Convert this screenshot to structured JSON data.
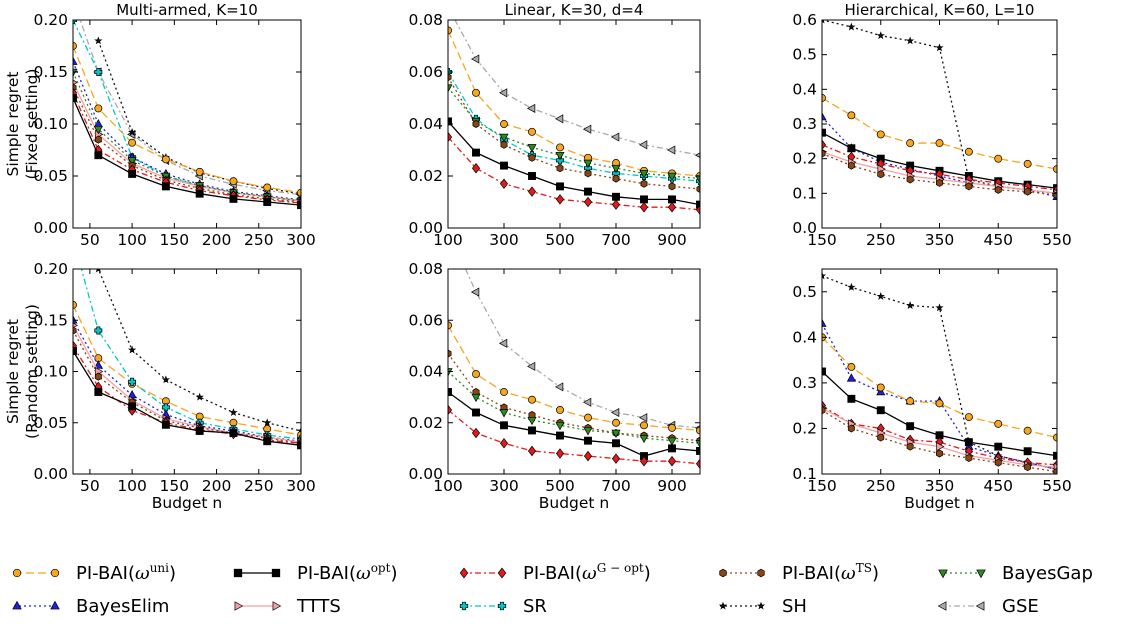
{
  "colors": {
    "PI-BAI(w_uni)": "#f5a623",
    "PI-BAI(w_opt)": "#000000",
    "PI-BAI(w_Gopt)": "#e31a1c",
    "PI-BAI(w_TS)": "#8b4513",
    "BayesGap": "#2e8b22",
    "BayesElim": "#1f1fe0",
    "TTTS": "#f4a0a8",
    "SR": "#00c8c8",
    "SH": "#111111",
    "GSE": "#aaaaaa"
  },
  "legend": [
    {
      "key": "PI-BAI(w_uni)",
      "base": "PI-BAI(",
      "math": "ω",
      "sup": "uni",
      "close": ")",
      "marker": "circle",
      "dash": "8,4"
    },
    {
      "key": "PI-BAI(w_opt)",
      "base": "PI-BAI(",
      "math": "ω",
      "sup": "opt",
      "close": ")",
      "marker": "square",
      "dash": ""
    },
    {
      "key": "PI-BAI(w_Gopt)",
      "base": "PI-BAI(",
      "math": "ω",
      "sup": "G − opt",
      "close": ")",
      "marker": "diamond",
      "dash": "6,3,2,3"
    },
    {
      "key": "PI-BAI(w_TS)",
      "base": "PI-BAI(",
      "math": "ω",
      "sup": "TS",
      "close": ")",
      "marker": "hexagon",
      "dash": "2,3"
    },
    {
      "key": "BayesGap",
      "base": "BayesGap",
      "marker": "tri_down",
      "dash": "2,3"
    },
    {
      "key": "BayesElim",
      "base": "BayesElim",
      "marker": "tri_up",
      "dash": "2,3"
    },
    {
      "key": "TTTS",
      "base": "TTTS",
      "marker": "tri_right",
      "dash": ""
    },
    {
      "key": "SR",
      "base": "SR",
      "marker": "plus",
      "dash": "6,3,2,3"
    },
    {
      "key": "SH",
      "base": "SH",
      "marker": "star",
      "dash": "2,3"
    },
    {
      "key": "GSE",
      "base": "GSE",
      "marker": "tri_left",
      "dash": "6,3,2,3"
    }
  ],
  "chart_data": [
    {
      "type": "line",
      "title": "Multi-armed, K=10",
      "ylabel": "Simple regret\n(Fixed setting)",
      "xlabel": "",
      "xlim": [
        30,
        300
      ],
      "ylim": [
        0,
        0.2
      ],
      "xticks": [
        50,
        100,
        150,
        200,
        250,
        300
      ],
      "yticks": [
        0,
        0.05,
        0.1,
        0.15,
        0.2
      ],
      "xtick_labels": [
        "50",
        "100",
        "150",
        "200",
        "250",
        "300"
      ],
      "ytick_labels": [
        "0.00",
        "0.05",
        "0.10",
        "0.15",
        "0.20"
      ],
      "x": [
        30,
        60,
        100,
        140,
        180,
        220,
        260,
        300
      ],
      "series": [
        {
          "name": "GSE",
          "values": [
            0.22,
            0.15,
            0.09,
            0.065,
            0.05,
            0.042,
            0.036,
            0.032
          ]
        },
        {
          "name": "SH",
          "values": [
            null,
            0.18,
            0.092,
            0.068,
            0.053,
            0.045,
            0.038,
            0.033
          ]
        },
        {
          "name": "PI-BAI(w_uni)",
          "values": [
            0.175,
            0.115,
            0.082,
            0.066,
            0.054,
            0.045,
            0.039,
            0.034
          ]
        },
        {
          "name": "SR",
          "values": [
            0.2,
            0.15,
            0.068,
            0.05,
            0.04,
            0.034,
            0.03,
            0.026
          ]
        },
        {
          "name": "BayesElim",
          "values": [
            0.16,
            0.1,
            0.068,
            0.052,
            0.042,
            0.035,
            0.031,
            0.027
          ]
        },
        {
          "name": "TTTS",
          "values": [
            0.14,
            0.09,
            0.062,
            0.048,
            0.04,
            0.034,
            0.03,
            0.026
          ]
        },
        {
          "name": "BayesGap",
          "values": [
            0.15,
            0.095,
            0.065,
            0.05,
            0.041,
            0.034,
            0.03,
            0.026
          ]
        },
        {
          "name": "PI-BAI(w_TS)",
          "values": [
            0.135,
            0.085,
            0.06,
            0.046,
            0.038,
            0.032,
            0.028,
            0.025
          ]
        },
        {
          "name": "PI-BAI(w_Gopt)",
          "values": [
            0.13,
            0.075,
            0.056,
            0.044,
            0.036,
            0.031,
            0.027,
            0.024
          ]
        },
        {
          "name": "PI-BAI(w_opt)",
          "values": [
            0.125,
            0.07,
            0.052,
            0.04,
            0.033,
            0.028,
            0.025,
            0.022
          ]
        }
      ]
    },
    {
      "type": "line",
      "title": "Linear, K=30, d=4",
      "ylabel": "",
      "xlabel": "",
      "xlim": [
        100,
        1000
      ],
      "ylim": [
        0,
        0.08
      ],
      "xticks": [
        100,
        300,
        500,
        700,
        900
      ],
      "yticks": [
        0,
        0.02,
        0.04,
        0.06,
        0.08
      ],
      "xtick_labels": [
        "100",
        "300",
        "500",
        "700",
        "900"
      ],
      "ytick_labels": [
        "0.00",
        "0.02",
        "0.04",
        "0.06",
        "0.08"
      ],
      "x": [
        100,
        200,
        300,
        400,
        500,
        600,
        700,
        800,
        900,
        1000
      ],
      "series": [
        {
          "name": "GSE",
          "values": [
            0.085,
            0.065,
            0.052,
            0.046,
            0.042,
            0.038,
            0.035,
            0.032,
            0.03,
            0.028
          ]
        },
        {
          "name": "PI-BAI(w_uni)",
          "values": [
            0.076,
            0.052,
            0.04,
            0.037,
            0.031,
            0.027,
            0.025,
            0.022,
            0.021,
            0.02
          ]
        },
        {
          "name": "SR",
          "values": [
            0.06,
            0.042,
            0.034,
            0.028,
            0.026,
            0.023,
            0.021,
            0.02,
            0.019,
            0.018
          ]
        },
        {
          "name": "BayesGap",
          "values": [
            0.054,
            0.041,
            0.035,
            0.031,
            0.028,
            0.025,
            0.023,
            0.021,
            0.02,
            0.019
          ]
        },
        {
          "name": "PI-BAI(w_TS)",
          "values": [
            0.058,
            0.04,
            0.032,
            0.027,
            0.023,
            0.021,
            0.019,
            0.017,
            0.016,
            0.015
          ]
        },
        {
          "name": "PI-BAI(w_opt)",
          "values": [
            0.041,
            0.029,
            0.024,
            0.02,
            0.016,
            0.014,
            0.012,
            0.011,
            0.011,
            0.009
          ]
        },
        {
          "name": "PI-BAI(w_Gopt)",
          "values": [
            0.035,
            0.023,
            0.017,
            0.014,
            0.011,
            0.01,
            0.009,
            0.008,
            0.008,
            0.007
          ]
        }
      ]
    },
    {
      "type": "line",
      "title": "Hierarchical, K=60, L=10",
      "ylabel": "",
      "xlabel": "",
      "xlim": [
        150,
        550
      ],
      "ylim": [
        0,
        0.6
      ],
      "xticks": [
        150,
        250,
        350,
        450,
        550
      ],
      "yticks": [
        0,
        0.1,
        0.2,
        0.3,
        0.4,
        0.5,
        0.6
      ],
      "xtick_labels": [
        "150",
        "250",
        "350",
        "450",
        "550"
      ],
      "ytick_labels": [
        "0.0",
        "0.1",
        "0.2",
        "0.3",
        "0.4",
        "0.5",
        "0.6"
      ],
      "x": [
        150,
        200,
        250,
        300,
        350,
        400,
        450,
        500,
        550
      ],
      "series": [
        {
          "name": "SH",
          "values": [
            0.6,
            0.58,
            0.555,
            0.54,
            0.52,
            0.14,
            0.12,
            0.11,
            0.1
          ]
        },
        {
          "name": "PI-BAI(w_uni)",
          "values": [
            0.375,
            0.325,
            0.27,
            0.245,
            0.245,
            0.22,
            0.2,
            0.185,
            0.17
          ]
        },
        {
          "name": "BayesElim",
          "values": [
            0.32,
            0.23,
            0.19,
            0.17,
            0.15,
            0.13,
            0.12,
            0.11,
            0.09
          ]
        },
        {
          "name": "PI-BAI(w_opt)",
          "values": [
            0.275,
            0.23,
            0.2,
            0.18,
            0.165,
            0.15,
            0.135,
            0.125,
            0.115
          ]
        },
        {
          "name": "PI-BAI(w_Gopt)",
          "values": [
            0.24,
            0.205,
            0.185,
            0.165,
            0.155,
            0.14,
            0.13,
            0.12,
            0.11
          ]
        },
        {
          "name": "TTTS",
          "values": [
            0.22,
            0.19,
            0.17,
            0.15,
            0.14,
            0.13,
            0.12,
            0.11,
            0.1
          ]
        },
        {
          "name": "PI-BAI(w_TS)",
          "values": [
            0.215,
            0.18,
            0.155,
            0.14,
            0.13,
            0.12,
            0.11,
            0.105,
            0.095
          ]
        }
      ]
    },
    {
      "type": "line",
      "title": "",
      "ylabel": "Simple regret\n(Random setting)",
      "xlabel": "Budget n",
      "xlim": [
        30,
        300
      ],
      "ylim": [
        0,
        0.2
      ],
      "xticks": [
        50,
        100,
        150,
        200,
        250,
        300
      ],
      "yticks": [
        0,
        0.05,
        0.1,
        0.15,
        0.2
      ],
      "xtick_labels": [
        "50",
        "100",
        "150",
        "200",
        "250",
        "300"
      ],
      "ytick_labels": [
        "0.00",
        "0.05",
        "0.10",
        "0.15",
        "0.20"
      ],
      "x": [
        30,
        60,
        100,
        140,
        180,
        220,
        260,
        300
      ],
      "series": [
        {
          "name": "SH",
          "values": [
            0.25,
            0.2,
            0.121,
            0.092,
            0.075,
            0.06,
            0.05,
            0.042
          ]
        },
        {
          "name": "PI-BAI(w_uni)",
          "values": [
            0.165,
            0.113,
            0.088,
            0.071,
            0.056,
            0.05,
            0.044,
            0.038
          ]
        },
        {
          "name": "SR",
          "values": [
            0.23,
            0.14,
            0.09,
            0.065,
            0.05,
            0.044,
            0.038,
            0.034
          ]
        },
        {
          "name": "BayesElim",
          "values": [
            0.15,
            0.106,
            0.077,
            0.058,
            0.047,
            0.042,
            0.036,
            0.032
          ]
        },
        {
          "name": "TTTS",
          "values": [
            0.145,
            0.1,
            0.072,
            0.054,
            0.046,
            0.04,
            0.036,
            0.031
          ]
        },
        {
          "name": "PI-BAI(w_TS)",
          "values": [
            0.14,
            0.095,
            0.07,
            0.052,
            0.045,
            0.04,
            0.035,
            0.03
          ]
        },
        {
          "name": "PI-BAI(w_Gopt)",
          "values": [
            0.125,
            0.085,
            0.062,
            0.05,
            0.043,
            0.039,
            0.033,
            0.03
          ]
        },
        {
          "name": "PI-BAI(w_opt)",
          "values": [
            0.12,
            0.08,
            0.066,
            0.048,
            0.042,
            0.04,
            0.032,
            0.028
          ]
        }
      ]
    },
    {
      "type": "line",
      "title": "",
      "ylabel": "",
      "xlabel": "Budget n",
      "xlim": [
        100,
        1000
      ],
      "ylim": [
        0,
        0.08
      ],
      "xticks": [
        100,
        300,
        500,
        700,
        900
      ],
      "yticks": [
        0,
        0.02,
        0.04,
        0.06,
        0.08
      ],
      "xtick_labels": [
        "100",
        "300",
        "500",
        "700",
        "900"
      ],
      "ytick_labels": [
        "0.00",
        "0.02",
        "0.04",
        "0.06",
        "0.08"
      ],
      "x": [
        100,
        200,
        300,
        400,
        500,
        600,
        700,
        800,
        900,
        1000
      ],
      "series": [
        {
          "name": "GSE",
          "values": [
            0.095,
            0.071,
            0.051,
            0.042,
            0.034,
            0.028,
            0.024,
            0.022,
            0.019,
            0.018
          ]
        },
        {
          "name": "PI-BAI(w_uni)",
          "values": [
            0.058,
            0.039,
            0.032,
            0.029,
            0.025,
            0.022,
            0.02,
            0.019,
            0.018,
            0.017
          ]
        },
        {
          "name": "PI-BAI(w_TS)",
          "values": [
            0.047,
            0.032,
            0.026,
            0.023,
            0.02,
            0.018,
            0.016,
            0.015,
            0.014,
            0.013
          ]
        },
        {
          "name": "BayesGap",
          "values": [
            0.04,
            0.03,
            0.024,
            0.021,
            0.019,
            0.017,
            0.016,
            0.014,
            0.013,
            0.012
          ]
        },
        {
          "name": "PI-BAI(w_opt)",
          "values": [
            0.032,
            0.024,
            0.019,
            0.017,
            0.015,
            0.013,
            0.012,
            0.007,
            0.01,
            0.009
          ]
        },
        {
          "name": "PI-BAI(w_Gopt)",
          "values": [
            0.025,
            0.016,
            0.012,
            0.009,
            0.008,
            0.007,
            0.006,
            0.005,
            0.005,
            0.004
          ]
        }
      ]
    },
    {
      "type": "line",
      "title": "",
      "ylabel": "",
      "xlabel": "Budget n",
      "xlim": [
        150,
        550
      ],
      "ylim": [
        0.1,
        0.55
      ],
      "xticks": [
        150,
        250,
        350,
        450,
        550
      ],
      "yticks": [
        0.1,
        0.2,
        0.3,
        0.4,
        0.5
      ],
      "xtick_labels": [
        "150",
        "250",
        "350",
        "450",
        "550"
      ],
      "ytick_labels": [
        "0.1",
        "0.2",
        "0.3",
        "0.4",
        "0.5"
      ],
      "x": [
        150,
        200,
        250,
        300,
        350,
        400,
        450,
        500,
        550
      ],
      "series": [
        {
          "name": "SH",
          "values": [
            0.535,
            0.51,
            0.49,
            0.47,
            0.465,
            0.17,
            0.14,
            0.125,
            0.11
          ]
        },
        {
          "name": "BayesElim",
          "values": [
            0.43,
            0.31,
            0.28,
            0.26,
            0.26,
            0.16,
            0.14,
            0.125,
            0.11
          ]
        },
        {
          "name": "PI-BAI(w_uni)",
          "values": [
            0.4,
            0.335,
            0.29,
            0.26,
            0.255,
            0.225,
            0.21,
            0.195,
            0.18
          ]
        },
        {
          "name": "PI-BAI(w_opt)",
          "values": [
            0.325,
            0.265,
            0.24,
            0.205,
            0.185,
            0.17,
            0.16,
            0.15,
            0.14
          ]
        },
        {
          "name": "PI-BAI(w_Gopt)",
          "values": [
            0.25,
            0.21,
            0.2,
            0.175,
            0.17,
            0.15,
            0.135,
            0.125,
            0.12
          ]
        },
        {
          "name": "TTTS",
          "values": [
            0.245,
            0.21,
            0.19,
            0.17,
            0.16,
            0.14,
            0.13,
            0.12,
            0.115
          ]
        },
        {
          "name": "PI-BAI(w_TS)",
          "values": [
            0.24,
            0.2,
            0.18,
            0.16,
            0.145,
            0.135,
            0.125,
            0.115,
            0.105
          ]
        }
      ]
    }
  ]
}
